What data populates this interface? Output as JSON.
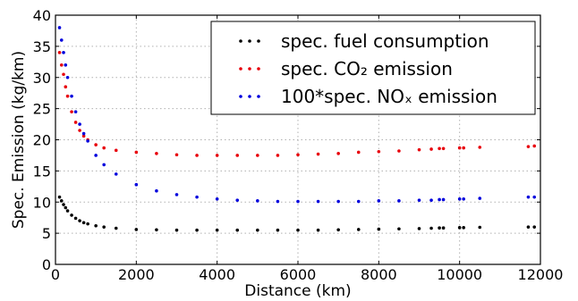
{
  "chart_data": {
    "type": "scatter",
    "title": "",
    "xlabel": "Distance (km)",
    "ylabel": "Spec. Emission (kg/km)",
    "xlim": [
      0,
      12000
    ],
    "ylim": [
      0,
      40
    ],
    "xticks": [
      0,
      2000,
      4000,
      6000,
      8000,
      10000,
      12000
    ],
    "yticks": [
      0,
      5,
      10,
      15,
      20,
      25,
      30,
      35,
      40
    ],
    "grid": true,
    "legend_position": "top-right",
    "series": [
      {
        "name": "spec. fuel consumption",
        "color": "#000000",
        "x": [
          100,
          150,
          200,
          250,
          300,
          400,
          500,
          600,
          700,
          800,
          1000,
          1200,
          1500,
          2000,
          2500,
          3000,
          3500,
          4000,
          4500,
          5000,
          5500,
          6000,
          6500,
          7000,
          7500,
          8000,
          8500,
          9000,
          9300,
          9500,
          9600,
          10000,
          10100,
          10500,
          11700,
          11850
        ],
        "y": [
          10.8,
          10.2,
          9.6,
          9.1,
          8.6,
          7.9,
          7.4,
          7.0,
          6.7,
          6.5,
          6.2,
          6.0,
          5.8,
          5.6,
          5.55,
          5.5,
          5.5,
          5.5,
          5.5,
          5.5,
          5.5,
          5.5,
          5.5,
          5.55,
          5.6,
          5.65,
          5.7,
          5.75,
          5.8,
          5.85,
          5.85,
          5.9,
          5.9,
          5.95,
          6.0,
          6.0
        ]
      },
      {
        "name": "spec. CO₂ emission",
        "color": "#e8000b",
        "x": [
          100,
          150,
          200,
          250,
          300,
          400,
          500,
          600,
          700,
          800,
          1000,
          1200,
          1500,
          2000,
          2500,
          3000,
          3500,
          4000,
          4500,
          5000,
          5500,
          6000,
          6500,
          7000,
          7500,
          8000,
          8500,
          9000,
          9300,
          9500,
          9600,
          10000,
          10100,
          10500,
          11700,
          11850
        ],
        "y": [
          34,
          32,
          30.5,
          28.5,
          27,
          24.5,
          22.8,
          21.5,
          20.6,
          20.0,
          19.2,
          18.7,
          18.3,
          18.0,
          17.8,
          17.6,
          17.5,
          17.5,
          17.5,
          17.5,
          17.5,
          17.6,
          17.7,
          17.8,
          18.0,
          18.1,
          18.2,
          18.4,
          18.5,
          18.6,
          18.6,
          18.7,
          18.7,
          18.8,
          18.9,
          19.0
        ]
      },
      {
        "name": "100*spec. NOₓ emission",
        "color": "#0000dd",
        "x": [
          100,
          150,
          200,
          250,
          300,
          400,
          500,
          600,
          700,
          800,
          1000,
          1200,
          1500,
          2000,
          2500,
          3000,
          3500,
          4000,
          4500,
          5000,
          5500,
          6000,
          6500,
          7000,
          7500,
          8000,
          8500,
          9000,
          9300,
          9500,
          9600,
          10000,
          10100,
          10500,
          11700,
          11850
        ],
        "y": [
          38,
          36,
          34,
          32,
          30,
          27,
          24.5,
          22.5,
          21,
          19.8,
          17.5,
          16,
          14.5,
          12.8,
          11.8,
          11.2,
          10.8,
          10.5,
          10.3,
          10.2,
          10.1,
          10.1,
          10.1,
          10.1,
          10.1,
          10.2,
          10.2,
          10.3,
          10.3,
          10.4,
          10.4,
          10.5,
          10.5,
          10.6,
          10.8,
          10.8
        ]
      }
    ]
  }
}
